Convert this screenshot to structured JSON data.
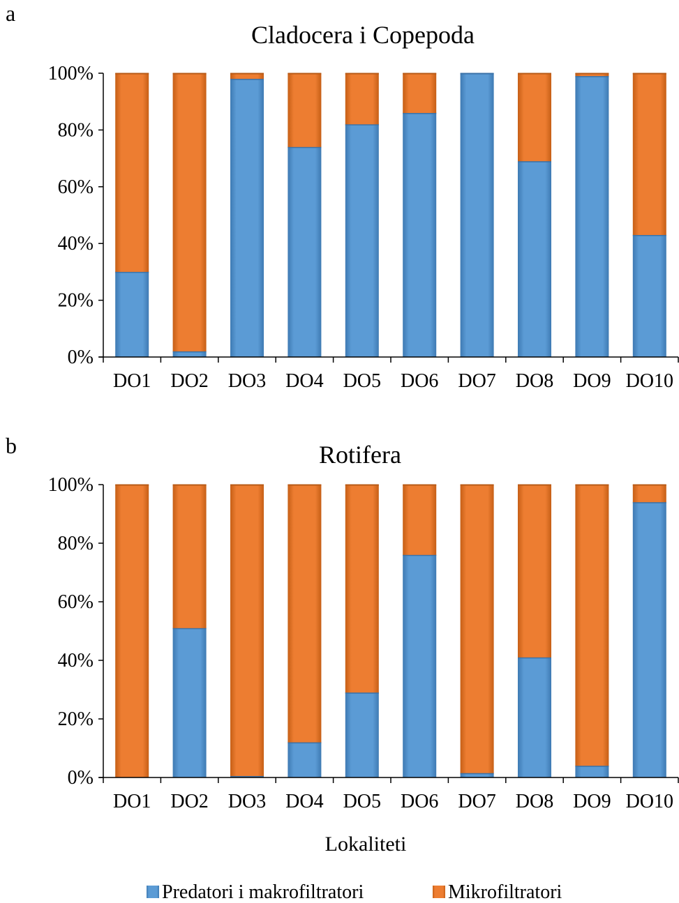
{
  "panels": [
    {
      "letter": "a"
    },
    {
      "letter": "b"
    }
  ],
  "xlabel": "Lokaliteti",
  "legend": {
    "items": [
      {
        "label": "Predatori i makrofiltratori",
        "color": "#5b9bd5"
      },
      {
        "label": "Mikrofiltratori",
        "color": "#ed7d31"
      }
    ]
  },
  "chart_data": [
    {
      "type": "bar",
      "stacked": true,
      "normalized": true,
      "title": "Cladocera i Copepoda",
      "categories": [
        "DO1",
        "DO2",
        "DO3",
        "DO4",
        "DO5",
        "DO6",
        "DO7",
        "DO8",
        "DO9",
        "DO10"
      ],
      "series": [
        {
          "name": "Predatori i makrofiltratori",
          "color": "#5b9bd5",
          "values": [
            30,
            2,
            98,
            74,
            82,
            86,
            100,
            69,
            99,
            43
          ]
        },
        {
          "name": "Mikrofiltratori",
          "color": "#ed7d31",
          "values": [
            70,
            98,
            2,
            26,
            18,
            14,
            0,
            31,
            1,
            57
          ]
        }
      ],
      "ylim": [
        0,
        100
      ],
      "yticks": [
        "0%",
        "20%",
        "40%",
        "60%",
        "80%",
        "100%"
      ],
      "grid": false,
      "legend_position": "bottom"
    },
    {
      "type": "bar",
      "stacked": true,
      "normalized": true,
      "title": "Rotifera",
      "categories": [
        "DO1",
        "DO2",
        "DO3",
        "DO4",
        "DO5",
        "DO6",
        "DO7",
        "DO8",
        "DO9",
        "DO10"
      ],
      "series": [
        {
          "name": "Predatori i makrofiltratori",
          "color": "#5b9bd5",
          "values": [
            0,
            51,
            0.5,
            12,
            29,
            76,
            1.5,
            41,
            4,
            94
          ]
        },
        {
          "name": "Mikrofiltratori",
          "color": "#ed7d31",
          "values": [
            100,
            49,
            99.5,
            88,
            71,
            24,
            98.5,
            59,
            96,
            6
          ]
        }
      ],
      "ylim": [
        0,
        100
      ],
      "yticks": [
        "0%",
        "20%",
        "40%",
        "60%",
        "80%",
        "100%"
      ],
      "xlabel": "Lokaliteti",
      "grid": false,
      "legend_position": "bottom"
    }
  ]
}
